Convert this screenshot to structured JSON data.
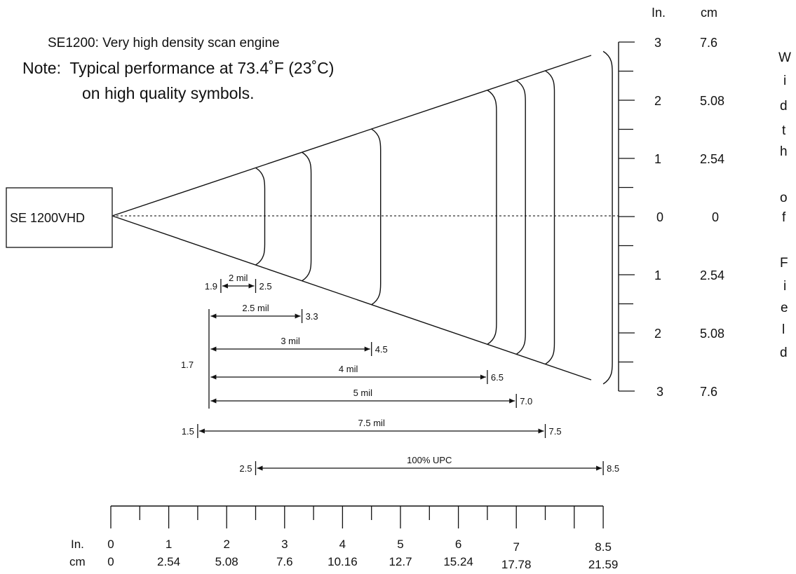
{
  "title": "SE1200: Very high density scan engine",
  "note_line1": "Note:  Typical performance at 73.4˚F (23˚C)",
  "note_line2": "on high quality symbols.",
  "device_label": "SE 1200VHD",
  "side_scale": {
    "unit_in": "In.",
    "unit_cm": "cm",
    "rows": [
      {
        "in": "3",
        "cm": "7.6"
      },
      {
        "in": "2",
        "cm": "5.08"
      },
      {
        "in": "1",
        "cm": "2.54"
      },
      {
        "in": "0",
        "cm": "0"
      },
      {
        "in": "1",
        "cm": "2.54"
      },
      {
        "in": "2",
        "cm": "5.08"
      },
      {
        "in": "3",
        "cm": "7.6"
      }
    ],
    "axis_title_letters": [
      "W",
      "i",
      "d",
      "t",
      "h",
      "o",
      "f",
      "F",
      "i",
      "e",
      "l",
      "d"
    ]
  },
  "bottom_scale": {
    "unit_in": "In.",
    "unit_cm": "cm",
    "in_labels": [
      "0",
      "1",
      "2",
      "3",
      "4",
      "5",
      "6",
      "7",
      "8.5"
    ],
    "cm_labels": [
      "0",
      "2.54",
      "5.08",
      "7.6",
      "10.16",
      "12.7",
      "15.24",
      "17.78",
      "21.59"
    ]
  },
  "ranges": [
    {
      "label": "2 mil",
      "near": "1.9",
      "far": "2.5",
      "near_in": 1.9,
      "far_in": 2.5
    },
    {
      "label": "2.5 mil",
      "near": "",
      "far": "3.3",
      "near_in": 1.7,
      "far_in": 3.3
    },
    {
      "label": "3 mil",
      "near": "",
      "far": "4.5",
      "near_in": 1.7,
      "far_in": 4.5
    },
    {
      "label": "4 mil",
      "near": "",
      "far": "6.5",
      "near_in": 1.7,
      "far_in": 6.5
    },
    {
      "label": "5 mil",
      "near": "",
      "far": "7.0",
      "near_in": 1.7,
      "far_in": 7.0
    },
    {
      "label": "7.5 mil",
      "near": "1.5",
      "far": "7.5",
      "near_in": 1.5,
      "far_in": 7.5
    },
    {
      "label": "100% UPC",
      "near": "2.5",
      "far": "8.5",
      "near_in": 2.5,
      "far_in": 8.5
    }
  ],
  "common_near_label": "1.7"
}
